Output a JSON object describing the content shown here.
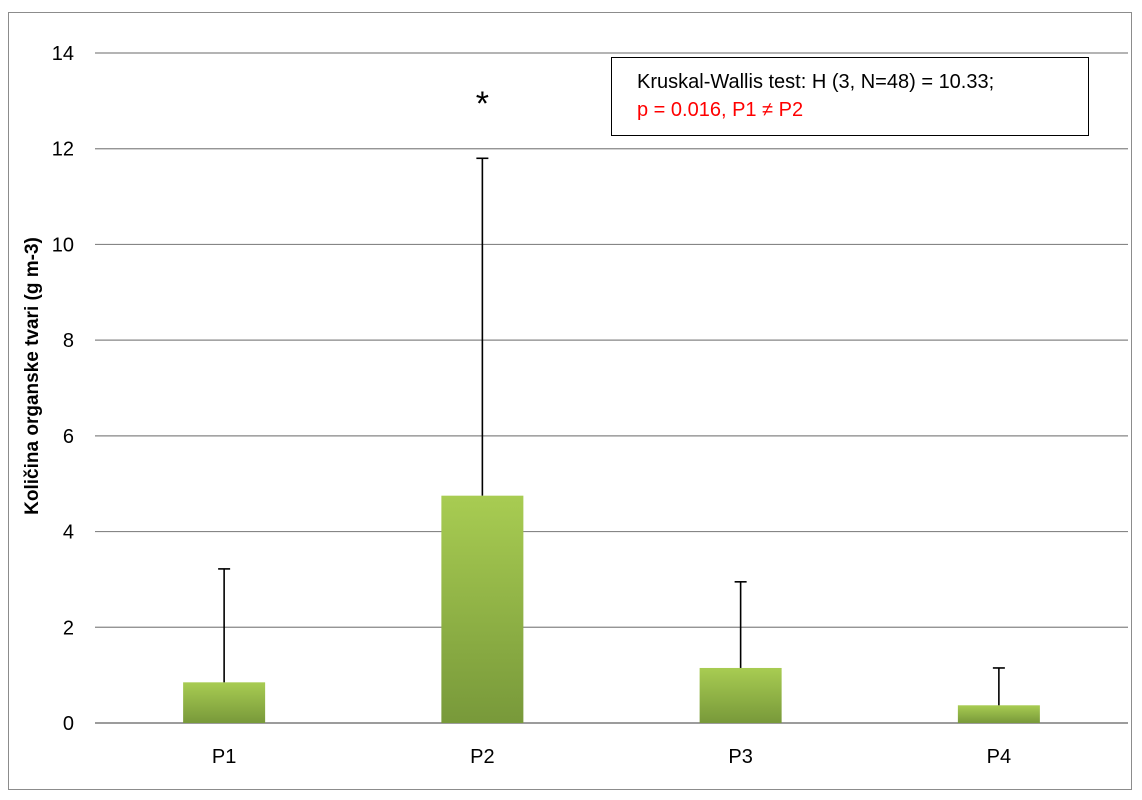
{
  "chart_data": {
    "type": "bar",
    "categories": [
      "P1",
      "P2",
      "P3",
      "P4"
    ],
    "values": [
      0.85,
      4.75,
      1.15,
      0.37
    ],
    "error_bars_upper": [
      3.22,
      11.8,
      2.95,
      1.15
    ],
    "ylabel": "Količina organske tvari (g m-3)",
    "xlabel": "",
    "ylim": [
      0,
      14
    ],
    "yticks": [
      0,
      2,
      4,
      6,
      8,
      10,
      12,
      14
    ],
    "grid": true,
    "significance_marker": {
      "category": "P2",
      "symbol": "*"
    },
    "annotation": {
      "line1": "Kruskal-Wallis test: H (3, N=48) = 10.33;",
      "line2": "p = 0.016, P1 ≠ P2"
    },
    "colors": {
      "bar_top": "#a8cc52",
      "bar_bottom": "#78993a",
      "grid": "#868686",
      "annotation_highlight": "#ff0000"
    }
  }
}
